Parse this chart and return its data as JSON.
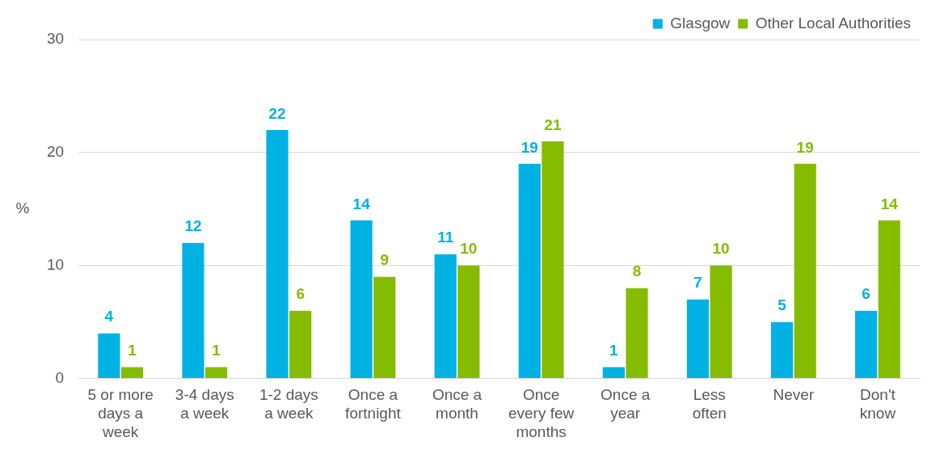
{
  "chart_data": {
    "type": "bar",
    "ylabel": "%",
    "categories": [
      "5 or more days a week",
      "3-4 days a week",
      "1-2 days a week",
      "Once a fortnight",
      "Once a month",
      "Once every few months",
      "Once a year",
      "Less often",
      "Never",
      "Don't know"
    ],
    "series": [
      {
        "name": "Glasgow",
        "color": "#00b2e3",
        "values": [
          4,
          12,
          22,
          14,
          11,
          19,
          1,
          7,
          5,
          6
        ]
      },
      {
        "name": "Other Local Authorities",
        "color": "#86bc00",
        "values": [
          1,
          1,
          6,
          9,
          10,
          21,
          8,
          10,
          19,
          14
        ]
      }
    ],
    "ylim": [
      0,
      30
    ],
    "yticks": [
      0,
      10,
      20,
      30
    ],
    "grid": "y",
    "legend": "top right",
    "data_labels": true
  }
}
